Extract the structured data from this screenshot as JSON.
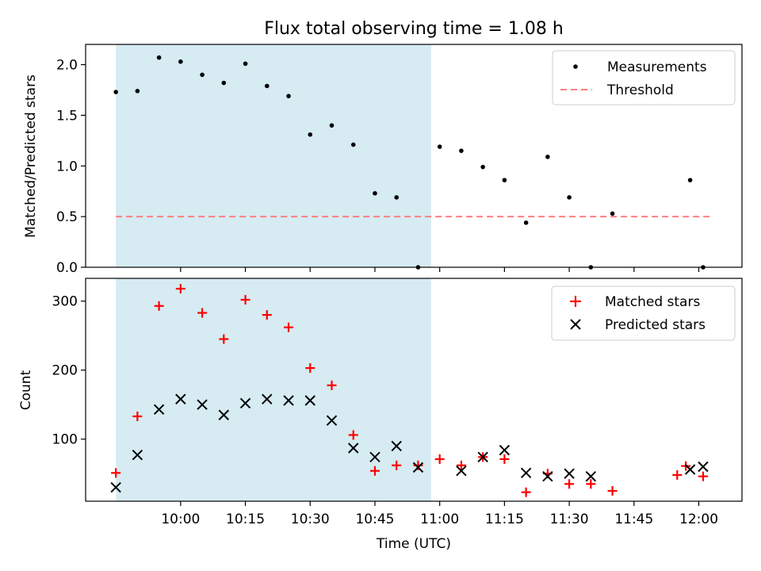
{
  "title": "Flux total observing time = 1.08 h",
  "colors": {
    "shade": "#add8e6",
    "measurement": "#000000",
    "threshold": "#ff7f7f",
    "matched": "#ff0000",
    "predicted": "#000000"
  },
  "chart_data": [
    {
      "type": "scatter",
      "ylabel": "Matched/Predicted stars",
      "ylim": [
        0,
        2.2
      ],
      "yticks": [
        0.0,
        0.5,
        1.0,
        1.5,
        2.0
      ],
      "ytick_labels": [
        "0.0",
        "0.5",
        "1.0",
        "1.5",
        "2.0"
      ],
      "legend": {
        "placement": "top-right",
        "measurements_label": "Measurements",
        "threshold_label": "Threshold"
      },
      "threshold": {
        "value": 0.5,
        "x_start": "09:45",
        "x_end": "12:03"
      },
      "shaded_span": {
        "start": "09:45",
        "end": "10:58"
      },
      "series": [
        {
          "name": "Measurements",
          "x": [
            "09:45",
            "09:50",
            "09:55",
            "10:00",
            "10:05",
            "10:10",
            "10:15",
            "10:20",
            "10:25",
            "10:30",
            "10:35",
            "10:40",
            "10:45",
            "10:50",
            "10:55",
            "11:00",
            "11:05",
            "11:10",
            "11:15",
            "11:20",
            "11:25",
            "11:30",
            "11:35",
            "11:40",
            "11:58",
            "12:01"
          ],
          "values": [
            1.73,
            1.74,
            2.07,
            2.03,
            1.9,
            1.82,
            2.01,
            1.79,
            1.69,
            1.31,
            1.4,
            1.21,
            0.73,
            0.69,
            0.0,
            1.19,
            1.15,
            0.99,
            0.86,
            0.44,
            1.09,
            0.69,
            0.0,
            0.53,
            0.86,
            0.0
          ]
        }
      ]
    },
    {
      "type": "scatter",
      "xlabel": "Time (UTC)",
      "ylabel": "Count",
      "ylim": [
        10,
        333
      ],
      "yticks": [
        100,
        200,
        300
      ],
      "ytick_labels": [
        "100",
        "200",
        "300"
      ],
      "xlim": [
        "09:38",
        "12:10"
      ],
      "xtick_labels": [
        "10:00",
        "10:15",
        "10:30",
        "10:45",
        "11:00",
        "11:15",
        "11:30",
        "11:45",
        "12:00"
      ],
      "legend": {
        "placement": "top-right",
        "matched_label": "Matched stars",
        "predicted_label": "Predicted stars"
      },
      "shaded_span": {
        "start": "09:45",
        "end": "10:58"
      },
      "series": [
        {
          "name": "Matched stars",
          "marker": "plus",
          "x": [
            "09:45",
            "09:50",
            "09:55",
            "10:00",
            "10:05",
            "10:10",
            "10:15",
            "10:20",
            "10:25",
            "10:30",
            "10:35",
            "10:40",
            "10:45",
            "10:50",
            "10:55",
            "11:00",
            "11:05",
            "11:10",
            "11:15",
            "11:20",
            "11:25",
            "11:30",
            "11:35",
            "11:40",
            "11:55",
            "11:57",
            "12:01"
          ],
          "values": [
            51,
            133,
            293,
            318,
            283,
            245,
            302,
            280,
            262,
            203,
            178,
            106,
            54,
            62,
            62,
            71,
            62,
            74,
            71,
            23,
            50,
            35,
            35,
            25,
            48,
            61,
            46
          ]
        },
        {
          "name": "Predicted stars",
          "marker": "x",
          "x": [
            "09:45",
            "09:50",
            "09:55",
            "10:00",
            "10:05",
            "10:10",
            "10:15",
            "10:20",
            "10:25",
            "10:30",
            "10:35",
            "10:40",
            "10:45",
            "10:50",
            "10:55",
            "11:05",
            "11:10",
            "11:15",
            "11:20",
            "11:25",
            "11:30",
            "11:35",
            "11:58",
            "12:01"
          ],
          "values": [
            30,
            77,
            143,
            158,
            150,
            135,
            152,
            158,
            156,
            156,
            127,
            87,
            74,
            90,
            59,
            54,
            74,
            84,
            51,
            46,
            50,
            46,
            56,
            60
          ]
        }
      ]
    }
  ]
}
